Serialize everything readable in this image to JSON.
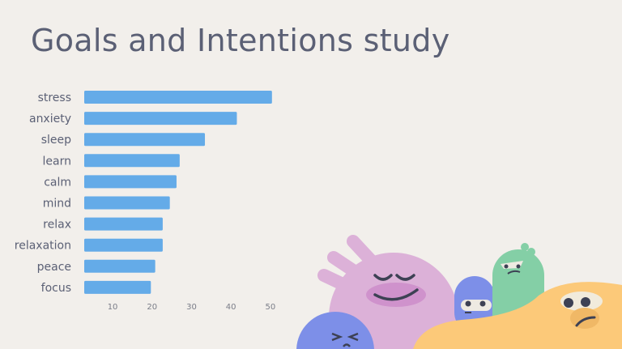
{
  "slide": {
    "title": "Goals and Intentions study"
  },
  "chart_data": {
    "type": "bar",
    "orientation": "horizontal",
    "title": "Goals and Intentions study",
    "categories": [
      "stress",
      "anxiety",
      "sleep",
      "learn",
      "calm",
      "mind",
      "relax",
      "relaxation",
      "peace",
      "focus"
    ],
    "values": [
      50.4,
      41.5,
      33.4,
      27.0,
      26.2,
      24.5,
      22.7,
      22.7,
      20.8,
      19.7
    ],
    "xticks": [
      10,
      20,
      30,
      40,
      50
    ],
    "xlim": [
      2.8,
      51
    ],
    "xlabel": "",
    "ylabel": "",
    "grid": false,
    "colors": {
      "bar": "#64abe8",
      "text": "#5b6075",
      "tick": "#7a7d88",
      "background": "#f2efeb"
    }
  }
}
